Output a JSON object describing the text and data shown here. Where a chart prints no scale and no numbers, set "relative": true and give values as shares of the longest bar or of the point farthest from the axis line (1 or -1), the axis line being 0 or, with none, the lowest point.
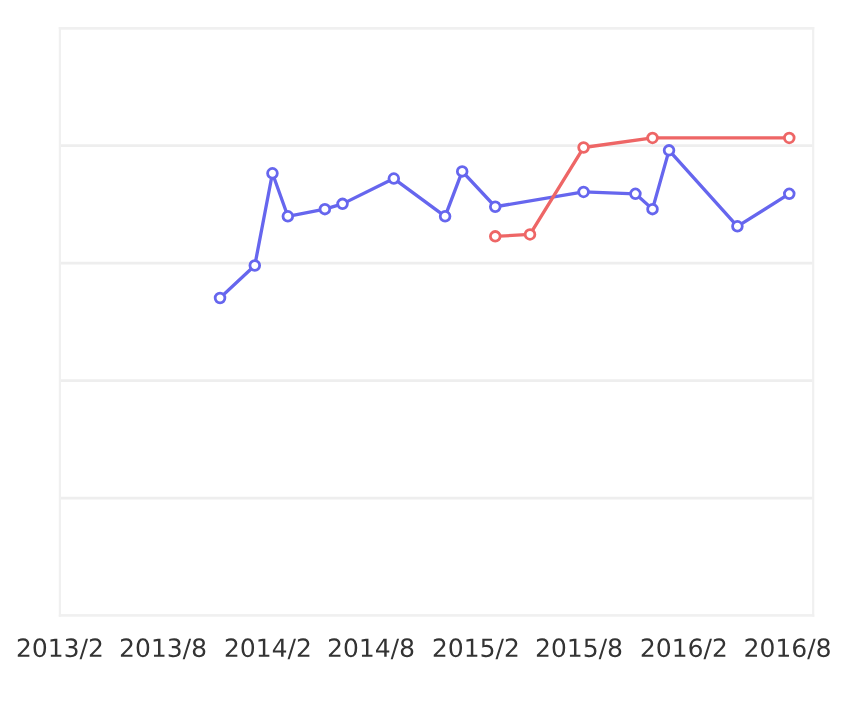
{
  "chart_data": {
    "type": "line",
    "relative": true,
    "grid": "y",
    "marker": "circle",
    "line_style": "solid",
    "tick_labels": "x",
    "xlim": [
      "2013-02-01",
      "2016-09-15"
    ],
    "xticks": [
      {
        "value": "2013-02-01",
        "label": "2013/2"
      },
      {
        "value": "2013-08-01",
        "label": "2013/8"
      },
      {
        "value": "2014-02-01",
        "label": "2014/2"
      },
      {
        "value": "2014-08-01",
        "label": "2014/8"
      },
      {
        "value": "2015-02-01",
        "label": "2015/2"
      },
      {
        "value": "2015-08-01",
        "label": "2015/8"
      },
      {
        "value": "2016-02-01",
        "label": "2016/2"
      },
      {
        "value": "2016-08-01",
        "label": "2016/8"
      }
    ],
    "series": [
      {
        "color": "#6666ee",
        "x": [
          "2013-11-09",
          "2014-01-09",
          "2014-02-09",
          "2014-03-08",
          "2014-05-12",
          "2014-06-12",
          "2014-09-10",
          "2014-12-09",
          "2015-01-08",
          "2015-03-07",
          "2015-08-09",
          "2015-11-08",
          "2015-12-08",
          "2016-01-06",
          "2016-05-05",
          "2016-08-04"
        ],
        "values": [
          0.665,
          0.733,
          0.926,
          0.836,
          0.851,
          0.862,
          0.915,
          0.836,
          0.93,
          0.856,
          0.887,
          0.883,
          0.851,
          0.974,
          0.815,
          0.883
        ]
      },
      {
        "color": "#ee6666",
        "x": [
          "2015-03-07",
          "2015-05-07",
          "2015-08-09",
          "2015-12-08",
          "2016-08-04"
        ],
        "values": [
          0.794,
          0.798,
          0.98,
          1,
          1
        ]
      }
    ]
  }
}
